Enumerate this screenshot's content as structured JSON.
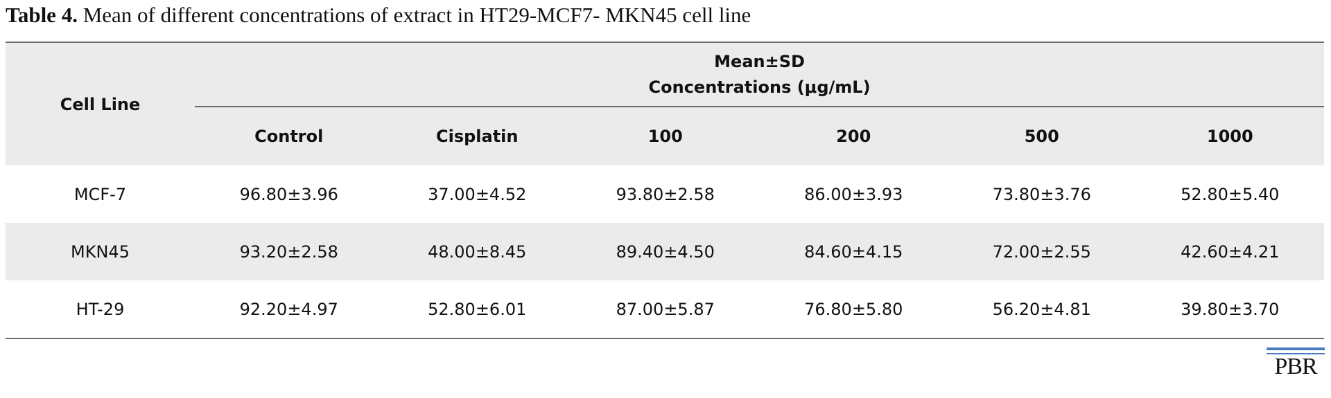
{
  "caption": {
    "label": "Table 4.",
    "text": "Mean of different concentrations of extract in HT29-MCF7- MKN45 cell line"
  },
  "table": {
    "row_header": "Cell Line",
    "group_header_line1": "Mean±SD",
    "group_header_line2": "Concentrations (μg/mL)",
    "columns": [
      "Control",
      "Cisplatin",
      "100",
      "200",
      "500",
      "1000"
    ],
    "rows": [
      {
        "cell_line": "MCF-7",
        "values": [
          "96.80±3.96",
          "37.00±4.52",
          "93.80±2.58",
          "86.00±3.93",
          "73.80±3.76",
          "52.80±5.40"
        ]
      },
      {
        "cell_line": "MKN45",
        "values": [
          "93.20±2.58",
          "48.00±8.45",
          "89.40±4.50",
          "84.60±4.15",
          "72.00±2.55",
          "42.60±4.21"
        ]
      },
      {
        "cell_line": "HT-29",
        "values": [
          "92.20±4.97",
          "52.80±6.01",
          "87.00±5.87",
          "76.80±5.80",
          "56.20±4.81",
          "39.80±3.70"
        ]
      }
    ]
  },
  "logo": {
    "text": "PBR",
    "accent_color": "#4a7dbf"
  },
  "colors": {
    "header_background": "#ebebeb",
    "rule": "#6b6b6b"
  }
}
